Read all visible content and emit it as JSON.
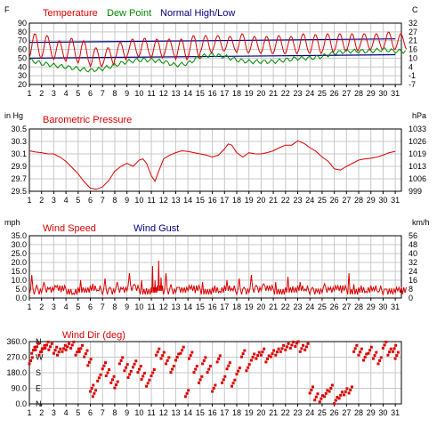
{
  "chart_data": [
    {
      "type": "line",
      "left_unit": "F",
      "right_unit": "C",
      "legend": [
        {
          "text": "Temperature",
          "color": "#dd0000"
        },
        {
          "text": "Dew Point",
          "color": "#008800"
        },
        {
          "text": "Normal High/Low",
          "color": "#000080"
        }
      ],
      "ylim": [
        20,
        90
      ],
      "y_ticks": [
        "90",
        "80",
        "70",
        "60",
        "50",
        "40",
        "30",
        "20"
      ],
      "y_ticks_right": [
        "32",
        "27",
        "21",
        "16",
        "10",
        "4",
        "-1",
        "-7"
      ],
      "x_ticks": [
        "1",
        "2",
        "3",
        "4",
        "5",
        "6",
        "7",
        "8",
        "9",
        "10",
        "11",
        "12",
        "13",
        "14",
        "15",
        "16",
        "17",
        "18",
        "19",
        "20",
        "21",
        "22",
        "23",
        "24",
        "25",
        "26",
        "27",
        "28",
        "29",
        "30",
        "31"
      ],
      "series": [
        {
          "name": "Temperature",
          "color": "#dd0000",
          "x": [
            1,
            2,
            3,
            4,
            5,
            6,
            7,
            8,
            9,
            10,
            11,
            12,
            13,
            14,
            15,
            16,
            17,
            18,
            19,
            20,
            21,
            22,
            23,
            24,
            25,
            26,
            27,
            28,
            29,
            30,
            31
          ],
          "high": [
            78,
            76,
            70,
            73,
            70,
            62,
            62,
            68,
            72,
            73,
            72,
            72,
            72,
            76,
            76,
            76,
            75,
            78,
            75,
            75,
            76,
            75,
            78,
            77,
            78,
            78,
            78,
            78,
            78,
            80,
            78
          ],
          "low": [
            50,
            50,
            48,
            46,
            44,
            40,
            42,
            48,
            52,
            52,
            50,
            52,
            48,
            50,
            56,
            58,
            58,
            56,
            56,
            55,
            55,
            55,
            56,
            55,
            57,
            58,
            58,
            60,
            60,
            60,
            60
          ]
        },
        {
          "name": "Dew Point",
          "color": "#008800",
          "x": [
            1,
            2,
            3,
            4,
            5,
            6,
            7,
            8,
            9,
            10,
            11,
            12,
            13,
            14,
            15,
            16,
            17,
            18,
            19,
            20,
            21,
            22,
            23,
            24,
            25,
            26,
            27,
            28,
            29,
            30,
            31
          ],
          "values": [
            48,
            44,
            42,
            40,
            38,
            36,
            38,
            42,
            46,
            48,
            48,
            46,
            42,
            44,
            52,
            54,
            52,
            48,
            46,
            46,
            46,
            48,
            50,
            50,
            52,
            56,
            58,
            58,
            58,
            60,
            58
          ]
        },
        {
          "name": "Normal High/Low",
          "color": "#000080",
          "x": [
            1,
            31
          ],
          "high": [
            68,
            72
          ],
          "low": [
            50,
            54
          ]
        }
      ]
    },
    {
      "type": "line",
      "left_unit": "in Hg",
      "right_unit": "hPa",
      "title": "Barometric Pressure",
      "title_color": "#dd0000",
      "ylim": [
        29.5,
        30.5
      ],
      "y_ticks": [
        "30.5",
        "30.3",
        "30.1",
        "29.9",
        "29.7",
        "29.5"
      ],
      "y_ticks_right": [
        "1033",
        "1026",
        "1019",
        "1013",
        "1006",
        "999"
      ],
      "x_ticks": [
        "1",
        "2",
        "3",
        "4",
        "5",
        "6",
        "7",
        "8",
        "9",
        "10",
        "11",
        "12",
        "13",
        "14",
        "15",
        "16",
        "17",
        "18",
        "19",
        "20",
        "21",
        "22",
        "23",
        "24",
        "25",
        "26",
        "27",
        "28",
        "29",
        "30",
        "31"
      ],
      "series": [
        {
          "name": "Barometric Pressure",
          "color": "#dd0000",
          "x": [
            1,
            1.5,
            2,
            2.5,
            3,
            3.5,
            4,
            4.5,
            5,
            5.5,
            6,
            6.5,
            7,
            7.5,
            8,
            8.5,
            9,
            9.5,
            10,
            10.3,
            10.6,
            11,
            11.3,
            11.6,
            12,
            12.5,
            13,
            13.5,
            14,
            14.5,
            15,
            15.5,
            16,
            16.5,
            17,
            17.3,
            17.6,
            18,
            18.5,
            19,
            19.5,
            20,
            20.5,
            21,
            21.5,
            22,
            22.5,
            23,
            23.5,
            24,
            24.5,
            25,
            25.5,
            26,
            26.5,
            27,
            27.5,
            28,
            28.5,
            29,
            29.5,
            30,
            30.5,
            31
          ],
          "values": [
            30.15,
            30.13,
            30.12,
            30.1,
            30.1,
            30.05,
            29.98,
            29.88,
            29.78,
            29.65,
            29.55,
            29.53,
            29.57,
            29.67,
            29.82,
            29.9,
            29.95,
            29.9,
            30.0,
            30.02,
            29.95,
            29.75,
            29.66,
            29.82,
            30.02,
            30.08,
            30.12,
            30.15,
            30.14,
            30.12,
            30.1,
            30.08,
            30.05,
            30.08,
            30.18,
            30.26,
            30.24,
            30.12,
            30.05,
            30.12,
            30.1,
            30.1,
            30.12,
            30.15,
            30.2,
            30.24,
            30.24,
            30.31,
            30.27,
            30.2,
            30.14,
            30.05,
            29.98,
            29.86,
            29.84,
            29.9,
            29.95,
            30.0,
            30.02,
            30.03,
            30.05,
            30.08,
            30.12,
            30.14
          ]
        }
      ]
    },
    {
      "type": "line",
      "left_unit": "mph",
      "right_unit": "km/h",
      "legend": [
        {
          "text": "Wind Speed",
          "color": "#dd0000"
        },
        {
          "text": "Wind Gust",
          "color": "#000080"
        }
      ],
      "ylim": [
        0,
        35
      ],
      "y_ticks": [
        "35.0",
        "30.0",
        "25.0",
        "20.0",
        "15.0",
        "10.0",
        "5.0",
        "0.0"
      ],
      "y_ticks_right": [
        "56",
        "48",
        "40",
        "32",
        "24",
        "16",
        "8",
        "0"
      ],
      "x_ticks": [
        "1",
        "2",
        "3",
        "4",
        "5",
        "6",
        "7",
        "8",
        "9",
        "10",
        "11",
        "12",
        "13",
        "14",
        "15",
        "16",
        "17",
        "18",
        "19",
        "20",
        "21",
        "22",
        "23",
        "24",
        "25",
        "26",
        "27",
        "28",
        "29",
        "30",
        "31"
      ],
      "series": [
        {
          "name": "Wind Speed",
          "color": "#dd0000",
          "x": [
            1,
            2,
            3,
            4,
            5,
            6,
            7,
            8,
            9,
            10,
            11,
            11.5,
            12,
            13,
            14,
            15,
            16,
            17,
            18,
            19,
            20,
            21,
            22,
            23,
            24,
            25,
            26,
            27,
            28,
            29,
            30,
            31
          ],
          "peaks": [
            13,
            9,
            6,
            5,
            10,
            8,
            11,
            9,
            14,
            10,
            18,
            21,
            14,
            6,
            5,
            9,
            7,
            10,
            11,
            13,
            8,
            9,
            12,
            9,
            6,
            8,
            5,
            14,
            7,
            6,
            5,
            4
          ]
        }
      ]
    },
    {
      "type": "scatter",
      "title": "Wind Dir (deg)",
      "title_color": "#dd0000",
      "ylim": [
        0,
        360
      ],
      "y_ticks": [
        "360.0",
        "270.0",
        "180.0",
        "90.0",
        "0.0"
      ],
      "compass_labels": [
        "N",
        "W",
        "S",
        "E",
        "N"
      ],
      "x_ticks": [
        "1",
        "2",
        "3",
        "4",
        "5",
        "6",
        "7",
        "8",
        "9",
        "10",
        "11",
        "12",
        "13",
        "14",
        "15",
        "16",
        "17",
        "18",
        "19",
        "20",
        "21",
        "22",
        "23",
        "24",
        "25",
        "26",
        "27",
        "28",
        "29",
        "30",
        "31"
      ],
      "series": [
        {
          "name": "Wind Dir (deg)",
          "color": "#dd0000",
          "x": [
            1,
            1.2,
            1.5,
            1.8,
            2,
            2.3,
            2.6,
            3,
            3.3,
            3.7,
            4,
            4.4,
            4.8,
            5.1,
            5.5,
            5.8,
            6,
            6.2,
            6.6,
            7,
            7.3,
            7.7,
            8,
            8.4,
            8.8,
            9.1,
            9.5,
            9.9,
            10.2,
            10.6,
            11,
            11.4,
            11.8,
            12.2,
            12.6,
            13,
            13.4,
            13.8,
            14.1,
            14.5,
            14.9,
            15.2,
            15.6,
            16,
            16.4,
            16.8,
            17.2,
            17.6,
            18,
            18.4,
            18.8,
            19.2,
            19.6,
            20,
            20.4,
            20.8,
            21.2,
            21.6,
            22,
            22.4,
            22.8,
            23.2,
            23.6,
            24,
            24.4,
            24.8,
            25.2,
            25.6,
            26,
            26.4,
            26.8,
            27.2,
            27.6,
            28,
            28.4,
            28.8,
            29.2,
            29.6,
            30,
            30.4,
            30.8,
            31
          ],
          "values": [
            250,
            310,
            330,
            300,
            320,
            340,
            330,
            310,
            300,
            320,
            330,
            340,
            300,
            320,
            290,
            240,
            90,
            60,
            150,
            220,
            180,
            140,
            110,
            250,
            210,
            170,
            230,
            200,
            160,
            120,
            180,
            300,
            280,
            250,
            200,
            270,
            310,
            60,
            280,
            200,
            140,
            250,
            200,
            90,
            260,
            140,
            220,
            120,
            190,
            290,
            210,
            270,
            280,
            300,
            260,
            290,
            300,
            320,
            330,
            340,
            350,
            320,
            330,
            80,
            40,
            30,
            60,
            90,
            20,
            50,
            70,
            80,
            320,
            300,
            270,
            310,
            280,
            250,
            340,
            300,
            320,
            280
          ]
        }
      ]
    }
  ]
}
